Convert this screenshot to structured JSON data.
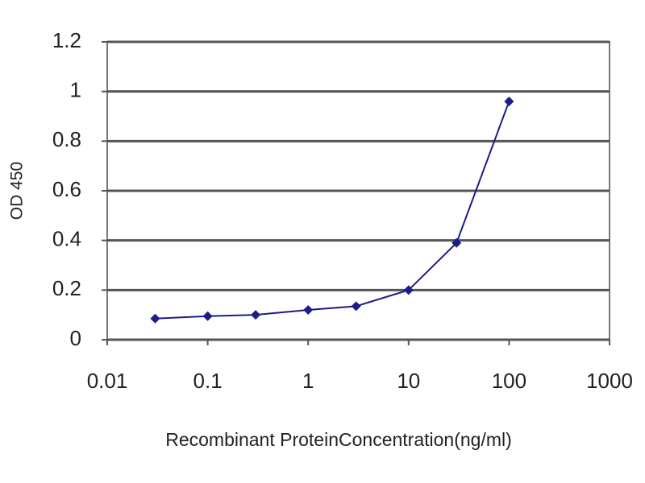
{
  "chart_data": {
    "type": "line",
    "x_label": "Recombinant ProteinConcentration(ng/ml)",
    "y_label": "OD 450",
    "x": [
      0.03,
      0.1,
      0.3,
      1,
      3,
      10,
      30,
      100
    ],
    "series": [
      {
        "color": "#1c1c8a",
        "values": [
          0.085,
          0.095,
          0.1,
          0.12,
          0.135,
          0.2,
          0.39,
          0.96
        ]
      }
    ],
    "xscale": "log",
    "xlim": [
      0.01,
      1000
    ],
    "xticks": [
      0.01,
      0.1,
      1,
      10,
      100,
      1000
    ],
    "ylim": [
      0,
      1.2
    ],
    "yticks": [
      0,
      0.2,
      0.4,
      0.6,
      0.8,
      1,
      1.2
    ],
    "grid": true
  }
}
